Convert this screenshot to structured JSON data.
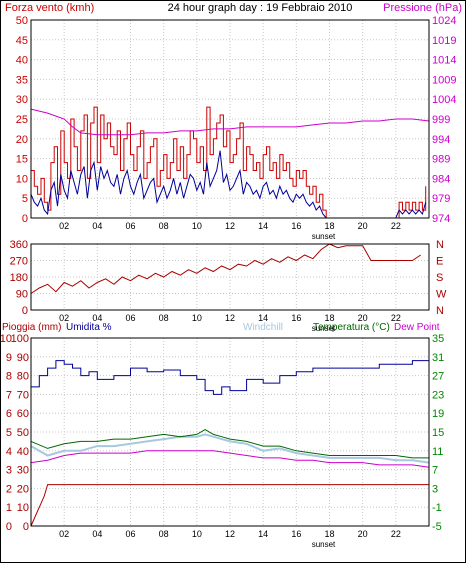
{
  "page": {
    "title": "24 hour graph day : 19 Febbraio 2010",
    "sunset_label": "sunset"
  },
  "colors": {
    "background": "#ffffff",
    "grid": "#c8c8c8",
    "frame": "#000000",
    "wind": "#cc0000",
    "wind_avg": "#000099",
    "pressure": "#cc00cc",
    "direction": "#aa0000",
    "rain": "#aa0000",
    "humidity": "#000099",
    "windchill": "#a6c8e0",
    "temperature": "#006600",
    "dew_point": "#cc00cc",
    "left_axis_wind": "#cc0000",
    "right_axis_pressure": "#cc00cc",
    "left_axis_rain_hum": "#aa0000",
    "right_axis_temp": "#008800"
  },
  "chart_data": [
    {
      "type": "line",
      "panel": "wind-pressure",
      "x_ticks": [
        "02",
        "04",
        "06",
        "08",
        "10",
        "12",
        "14",
        "16",
        "18",
        "20",
        "22"
      ],
      "xlim": [
        0,
        24
      ],
      "left_axis": {
        "label": "Forza vento (kmh)",
        "ticks": [
          "0",
          "5",
          "10",
          "15",
          "20",
          "25",
          "30",
          "35",
          "40",
          "45",
          "50"
        ],
        "ylim": [
          0,
          50
        ]
      },
      "right_axis": {
        "label": "Pressione (hPa)",
        "ticks": [
          "974",
          "979",
          "984",
          "989",
          "994",
          "999",
          "1004",
          "1009",
          "1014",
          "1019",
          "1024"
        ],
        "ylim": [
          974,
          1024
        ]
      },
      "series": [
        {
          "role": "wind_gust",
          "x": [
            0.0,
            0.2,
            0.4,
            0.6,
            0.8,
            1.0,
            1.2,
            1.4,
            1.6,
            1.8,
            2.0,
            2.2,
            2.4,
            2.6,
            2.8,
            3.0,
            3.2,
            3.4,
            3.6,
            3.8,
            4.0,
            4.2,
            4.4,
            4.6,
            4.8,
            5.0,
            5.2,
            5.4,
            5.6,
            5.8,
            6.0,
            6.2,
            6.4,
            6.6,
            6.8,
            7.0,
            7.2,
            7.4,
            7.6,
            7.8,
            8.0,
            8.2,
            8.4,
            8.6,
            8.8,
            9.0,
            9.2,
            9.4,
            9.6,
            9.8,
            10.0,
            10.2,
            10.4,
            10.6,
            10.8,
            11.0,
            11.2,
            11.4,
            11.6,
            11.8,
            12.0,
            12.2,
            12.4,
            12.6,
            12.8,
            13.0,
            13.2,
            13.4,
            13.6,
            13.8,
            14.0,
            14.2,
            14.4,
            14.6,
            14.8,
            15.0,
            15.2,
            15.4,
            15.6,
            15.8,
            16.0,
            16.2,
            16.4,
            16.6,
            16.8,
            17.0,
            17.2,
            17.4,
            17.6,
            17.8,
            18.0,
            22.0,
            22.2,
            22.4,
            22.6,
            22.8,
            23.0,
            23.2,
            23.4,
            23.6,
            23.8
          ],
          "values": [
            12,
            8,
            6,
            10,
            4,
            2,
            14,
            18,
            6,
            22,
            14,
            10,
            25,
            18,
            12,
            22,
            26,
            10,
            24,
            28,
            14,
            26,
            20,
            24,
            18,
            16,
            22,
            12,
            20,
            24,
            16,
            12,
            18,
            22,
            10,
            14,
            18,
            20,
            8,
            12,
            16,
            10,
            14,
            20,
            12,
            18,
            10,
            16,
            22,
            20,
            14,
            18,
            12,
            28,
            16,
            20,
            24,
            26,
            18,
            22,
            14,
            16,
            20,
            24,
            12,
            18,
            16,
            12,
            14,
            10,
            16,
            18,
            12,
            14,
            10,
            16,
            12,
            14,
            10,
            8,
            12,
            10,
            12,
            8,
            6,
            8,
            4,
            6,
            2,
            0,
            0,
            0,
            4,
            2,
            4,
            2,
            4,
            2,
            4,
            2,
            8
          ]
        },
        {
          "role": "wind_avg",
          "x": [
            0.0,
            0.2,
            0.4,
            0.6,
            0.8,
            1.0,
            1.2,
            1.4,
            1.6,
            1.8,
            2.0,
            2.2,
            2.4,
            2.6,
            2.8,
            3.0,
            3.2,
            3.4,
            3.6,
            3.8,
            4.0,
            4.2,
            4.4,
            4.6,
            4.8,
            5.0,
            5.2,
            5.4,
            5.6,
            5.8,
            6.0,
            6.2,
            6.4,
            6.6,
            6.8,
            7.0,
            7.2,
            7.4,
            7.6,
            7.8,
            8.0,
            8.2,
            8.4,
            8.6,
            8.8,
            9.0,
            9.2,
            9.4,
            9.6,
            9.8,
            10.0,
            10.2,
            10.4,
            10.6,
            10.8,
            11.0,
            11.2,
            11.4,
            11.6,
            11.8,
            12.0,
            12.2,
            12.4,
            12.6,
            12.8,
            13.0,
            13.2,
            13.4,
            13.6,
            13.8,
            14.0,
            14.2,
            14.4,
            14.6,
            14.8,
            15.0,
            15.2,
            15.4,
            15.6,
            15.8,
            16.0,
            16.2,
            16.4,
            16.6,
            16.8,
            17.0,
            17.2,
            17.4,
            17.6,
            17.8,
            18.0,
            22.0,
            22.2,
            22.4,
            22.6,
            22.8,
            23.0,
            23.2,
            23.4,
            23.6,
            23.8
          ],
          "values": [
            6,
            4,
            3,
            5,
            2,
            1,
            7,
            9,
            3,
            11,
            7,
            5,
            12,
            9,
            6,
            11,
            13,
            5,
            12,
            14,
            7,
            13,
            10,
            12,
            9,
            8,
            11,
            6,
            10,
            12,
            8,
            6,
            9,
            11,
            5,
            7,
            9,
            10,
            4,
            6,
            8,
            5,
            7,
            10,
            6,
            9,
            5,
            8,
            11,
            10,
            7,
            9,
            6,
            14,
            8,
            10,
            12,
            17,
            9,
            11,
            7,
            8,
            10,
            12,
            6,
            9,
            8,
            6,
            7,
            5,
            8,
            9,
            6,
            7,
            5,
            8,
            6,
            7,
            5,
            4,
            6,
            5,
            6,
            4,
            3,
            4,
            2,
            3,
            1,
            0,
            0,
            0,
            2,
            1,
            2,
            1,
            2,
            1,
            2,
            1,
            4
          ]
        },
        {
          "role": "pressure",
          "x": [
            0.0,
            1.0,
            2.0,
            2.5,
            3.0,
            4.0,
            5.0,
            6.0,
            7.0,
            8.0,
            9.0,
            10.0,
            11.0,
            12.0,
            13.0,
            14.0,
            15.0,
            16.0,
            17.0,
            18.0,
            19.0,
            20.0,
            21.0,
            22.0,
            23.0,
            24.0
          ],
          "values": [
            1001.5,
            1000.5,
            999.0,
            997.0,
            995.5,
            995.0,
            995.0,
            995.0,
            995.5,
            995.5,
            996.0,
            996.0,
            996.5,
            996.5,
            997.0,
            997.0,
            997.0,
            997.0,
            997.5,
            998.0,
            998.0,
            998.5,
            998.5,
            999.0,
            999.0,
            998.5
          ]
        }
      ]
    },
    {
      "type": "line",
      "panel": "wind-direction",
      "x_ticks": [
        "02",
        "04",
        "06",
        "08",
        "10",
        "12",
        "14",
        "16",
        "18",
        "20",
        "22"
      ],
      "xlim": [
        0,
        24
      ],
      "left_axis": {
        "ticks": [
          "0",
          "90",
          "180",
          "270",
          "360"
        ],
        "ylim": [
          0,
          360
        ]
      },
      "right_axis": {
        "ticks": [
          "N",
          "W",
          "S",
          "E",
          "N"
        ]
      },
      "series": [
        {
          "role": "direction",
          "x": [
            0.0,
            0.5,
            1.0,
            1.5,
            2.0,
            2.5,
            3.0,
            3.5,
            4.0,
            4.5,
            5.0,
            5.5,
            6.0,
            6.5,
            7.0,
            7.5,
            8.0,
            8.5,
            9.0,
            9.5,
            10.0,
            10.5,
            11.0,
            11.5,
            12.0,
            12.5,
            13.0,
            13.5,
            14.0,
            14.5,
            15.0,
            15.5,
            16.0,
            16.5,
            17.0,
            17.5,
            18.0,
            18.5,
            19.0,
            19.5,
            20.0,
            20.5,
            21.0,
            21.5,
            22.0,
            22.5,
            23.0,
            23.5
          ],
          "values": [
            90,
            120,
            140,
            100,
            150,
            130,
            160,
            120,
            150,
            170,
            140,
            180,
            160,
            190,
            170,
            200,
            180,
            210,
            190,
            220,
            200,
            230,
            210,
            240,
            220,
            250,
            240,
            270,
            250,
            280,
            260,
            290,
            270,
            300,
            280,
            330,
            360,
            340,
            350,
            350,
            350,
            270,
            270,
            270,
            270,
            270,
            270,
            300
          ]
        }
      ]
    },
    {
      "type": "line",
      "panel": "rain-humidity-temperature",
      "x_ticks": [
        "02",
        "04",
        "06",
        "08",
        "10",
        "12",
        "14",
        "16",
        "18",
        "20",
        "22"
      ],
      "xlim": [
        0,
        24
      ],
      "left_axis": {
        "rain_ticks": [
          "0",
          "1",
          "2",
          "3",
          "4",
          "5",
          "6",
          "7",
          "8",
          "9",
          "10"
        ],
        "humidity_ticks": [
          "0",
          "10",
          "20",
          "30",
          "40",
          "50",
          "60",
          "70",
          "80",
          "90",
          "100"
        ],
        "ylim": [
          0,
          100
        ]
      },
      "right_axis": {
        "ticks": [
          "-5",
          "-1",
          "3",
          "7",
          "11",
          "15",
          "19",
          "23",
          "27",
          "31",
          "35"
        ],
        "ylim": [
          -5,
          35
        ]
      },
      "legend": [
        "Pioggia (mm)",
        "Umidita %",
        "Windchill",
        "Temperatura (°C)",
        "Dew Point"
      ],
      "series": [
        {
          "role": "rain",
          "x": [
            0.0,
            0.2,
            0.4,
            0.6,
            0.8,
            1.0,
            24.0,
            24.0
          ],
          "values": [
            0.0,
            0.4,
            0.8,
            1.2,
            1.6,
            2.2,
            2.2,
            0.0
          ]
        },
        {
          "role": "humidity",
          "x": [
            0.0,
            0.5,
            1.0,
            1.5,
            2.0,
            2.5,
            3.0,
            3.5,
            4.0,
            5.0,
            6.0,
            7.0,
            8.0,
            9.0,
            10.0,
            10.5,
            11.0,
            11.5,
            12.0,
            13.0,
            14.0,
            15.0,
            16.0,
            17.0,
            18.0,
            19.0,
            20.0,
            21.0,
            22.0,
            23.0,
            24.0
          ],
          "values": [
            74,
            80,
            84,
            88,
            86,
            84,
            80,
            82,
            78,
            80,
            84,
            82,
            83,
            80,
            78,
            72,
            70,
            74,
            72,
            78,
            76,
            80,
            82,
            84,
            84,
            84,
            84,
            86,
            86,
            88,
            88
          ]
        },
        {
          "role": "windchill",
          "x": [
            0.0,
            1.0,
            2.0,
            3.0,
            4.0,
            5.0,
            6.0,
            7.0,
            8.0,
            9.0,
            10.0,
            10.5,
            11.0,
            11.5,
            12.0,
            13.0,
            14.0,
            15.0,
            16.0,
            17.0,
            18.0,
            19.0,
            20.0,
            21.0,
            22.0,
            23.0,
            24.0
          ],
          "values": [
            12.0,
            10.0,
            11.0,
            11.0,
            12.0,
            12.0,
            12.5,
            13.0,
            13.5,
            14.0,
            14.0,
            14.5,
            14.0,
            13.5,
            13.0,
            12.5,
            11.0,
            11.5,
            10.5,
            10.0,
            9.5,
            9.5,
            9.5,
            9.5,
            9.0,
            9.0,
            8.5
          ]
        },
        {
          "role": "temperature",
          "x": [
            0.0,
            1.0,
            2.0,
            3.0,
            4.0,
            5.0,
            6.0,
            7.0,
            8.0,
            9.0,
            10.0,
            10.5,
            11.0,
            11.5,
            12.0,
            13.0,
            14.0,
            15.0,
            16.0,
            17.0,
            18.0,
            19.0,
            20.0,
            21.0,
            22.0,
            23.0,
            24.0
          ],
          "values": [
            13.0,
            11.5,
            12.5,
            13.0,
            13.0,
            13.5,
            13.5,
            14.0,
            14.5,
            14.0,
            14.5,
            15.5,
            14.5,
            14.0,
            13.5,
            13.0,
            12.0,
            12.0,
            11.0,
            10.5,
            10.0,
            10.0,
            10.0,
            10.0,
            10.0,
            9.5,
            9.5
          ]
        },
        {
          "role": "dew_point",
          "x": [
            0.0,
            1.0,
            2.0,
            3.0,
            4.0,
            5.0,
            6.0,
            7.0,
            8.0,
            9.0,
            10.0,
            11.0,
            12.0,
            13.0,
            14.0,
            15.0,
            16.0,
            17.0,
            18.0,
            19.0,
            20.0,
            21.0,
            22.0,
            23.0,
            24.0
          ],
          "values": [
            8.5,
            9.0,
            10.0,
            10.5,
            10.5,
            10.5,
            10.5,
            11.0,
            11.0,
            11.0,
            11.0,
            11.0,
            10.5,
            10.0,
            9.5,
            9.5,
            9.0,
            9.0,
            8.5,
            8.5,
            8.5,
            8.0,
            8.0,
            8.0,
            7.5
          ]
        }
      ]
    }
  ]
}
